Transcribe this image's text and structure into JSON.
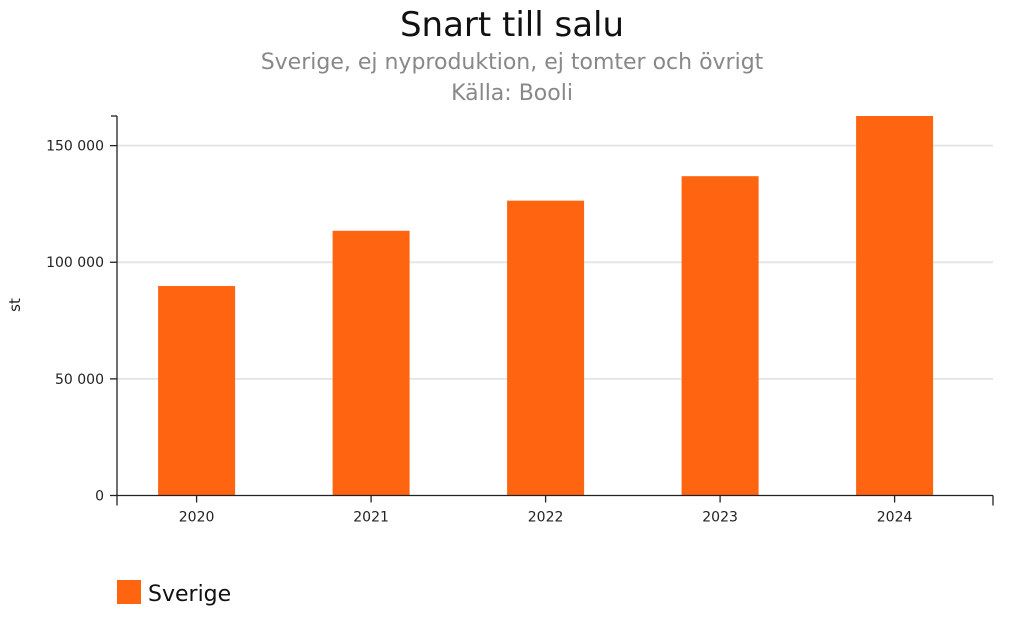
{
  "chart_data": {
    "type": "bar",
    "title": "Snart till salu",
    "subtitle": "Sverige, ej nyproduktion, ej tomter och övrigt",
    "source": "Källa: Booli",
    "xlabel": "",
    "ylabel": "st",
    "categories": [
      "2020",
      "2021",
      "2022",
      "2023",
      "2024"
    ],
    "series": [
      {
        "name": "Sverige",
        "color": "#ff6411",
        "values": [
          89800,
          113500,
          126400,
          136900,
          162700
        ]
      }
    ],
    "ylim": [
      0,
      162700
    ],
    "yticks": [
      0,
      50000,
      100000,
      150000
    ],
    "ytick_labels": [
      "0",
      "50 000",
      "100 000",
      "150 000"
    ],
    "grid": "horizontal",
    "legend": "bottom-left"
  }
}
